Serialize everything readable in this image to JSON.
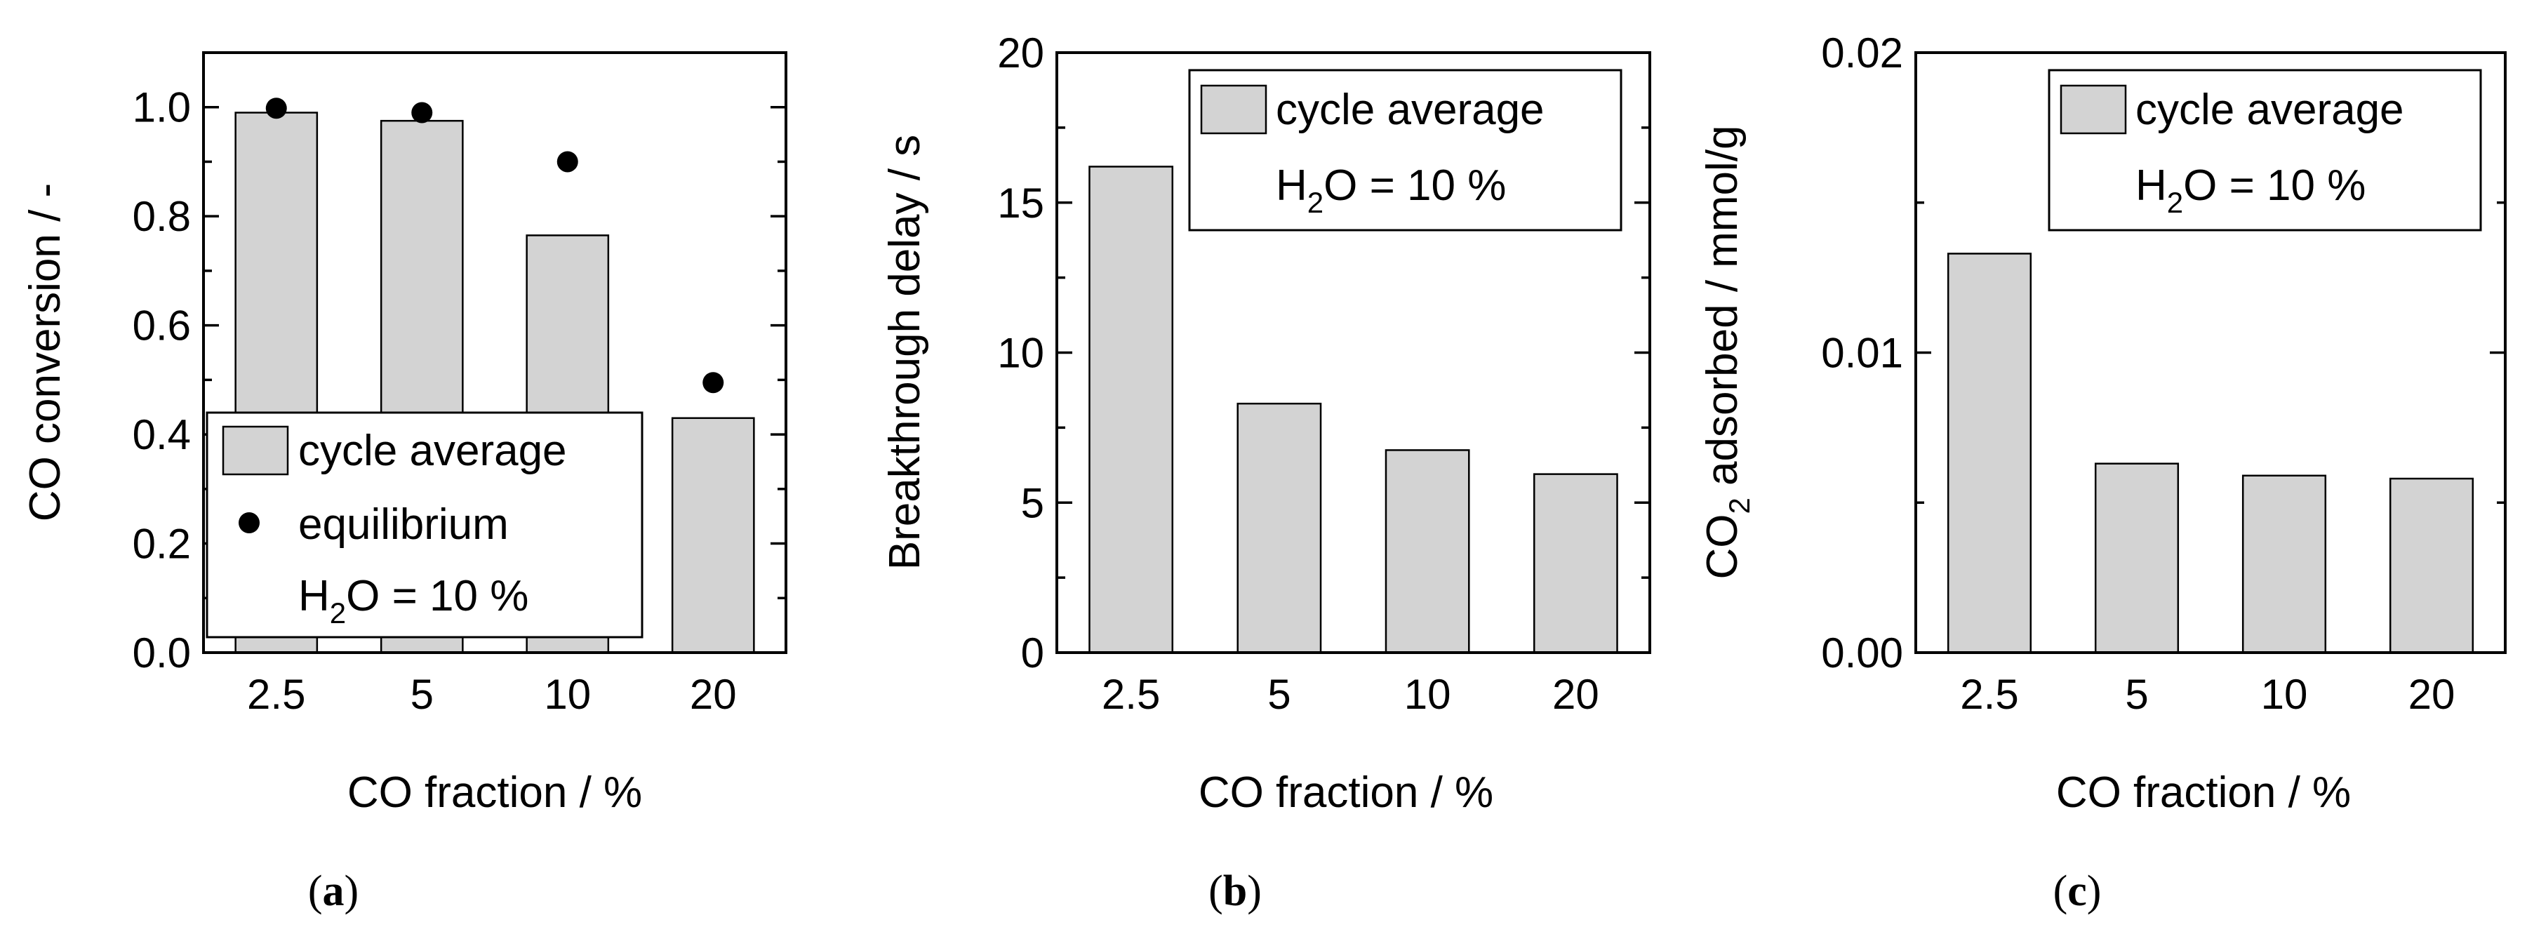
{
  "chart_data": [
    {
      "type": "bar",
      "panel_label": "a",
      "categories": [
        "2.5",
        "5",
        "10",
        "20"
      ],
      "series": [
        {
          "name": "cycle average",
          "kind": "bar",
          "values": [
            0.99,
            0.975,
            0.765,
            0.43
          ]
        },
        {
          "name": "equilibrium",
          "kind": "scatter",
          "values": [
            0.998,
            0.99,
            0.9,
            0.495
          ]
        }
      ],
      "xlabel": "CO fraction / %",
      "ylabel": "CO conversion / -",
      "ylim": [
        0,
        1.1
      ],
      "yticks": [
        "0.0",
        "0.2",
        "0.4",
        "0.6",
        "0.8",
        "1.0"
      ],
      "legend": {
        "position": "bottom-right",
        "entries": [
          "cycle average",
          "equilibrium"
        ],
        "note": "H2O = 10 %"
      }
    },
    {
      "type": "bar",
      "panel_label": "b",
      "categories": [
        "2.5",
        "5",
        "10",
        "20"
      ],
      "series": [
        {
          "name": "cycle average",
          "kind": "bar",
          "values": [
            16.2,
            8.3,
            6.75,
            5.95
          ]
        }
      ],
      "xlabel": "CO fraction / %",
      "ylabel": "Breakthrough delay / s",
      "ylim": [
        0,
        20
      ],
      "yticks": [
        "0",
        "5",
        "10",
        "15",
        "20"
      ],
      "legend": {
        "position": "top-right",
        "entries": [
          "cycle average"
        ],
        "note": "H2O = 10 %"
      }
    },
    {
      "type": "bar",
      "panel_label": "c",
      "categories": [
        "2.5",
        "5",
        "10",
        "20"
      ],
      "series": [
        {
          "name": "cycle average",
          "kind": "bar",
          "values": [
            0.0133,
            0.0063,
            0.0059,
            0.0058
          ]
        }
      ],
      "xlabel": "CO fraction / %",
      "ylabel": "CO2 adsorbed / mmol/g",
      "ylim": [
        0,
        0.02
      ],
      "yticks": [
        "0.00",
        "0.01",
        "0.02"
      ],
      "legend": {
        "position": "top-right",
        "entries": [
          "cycle average"
        ],
        "note": "H2O = 10 %"
      }
    }
  ],
  "text": {
    "a_ylabel_text": "CO conversion / -",
    "b_ylabel_text": "Breakthrough delay / s",
    "c_ylabel_pre": "CO",
    "c_ylabel_sub": "2",
    "c_ylabel_post": " adsorbed / mmol/g",
    "xlabel": "CO fraction / %",
    "legend_bar": "cycle average",
    "legend_dot": "equilibrium",
    "note_pre": "H",
    "note_sub": "2",
    "note_post": "O = 10 %",
    "paren_open": "(",
    "paren_close": ")",
    "label_a": "a",
    "label_b": "b",
    "label_c": "c"
  },
  "colors": {
    "bar_fill": "#d3d3d3",
    "stroke": "#000000",
    "dot": "#000000"
  }
}
